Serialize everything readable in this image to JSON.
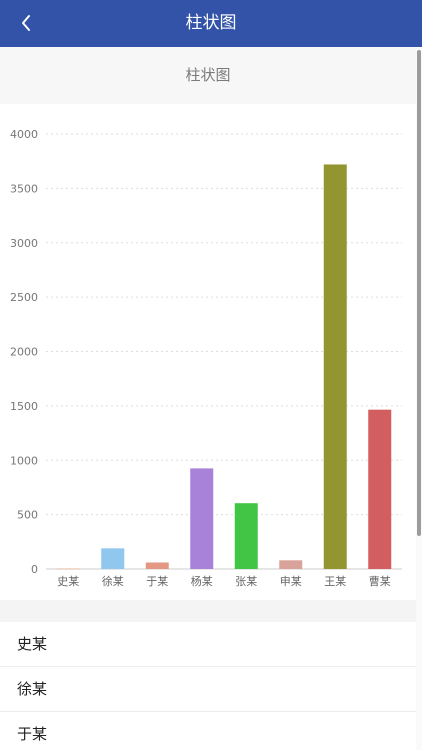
{
  "header": {
    "title": "柱状图",
    "back_icon": "chevron-left-icon"
  },
  "subheader": {
    "title": "柱状图"
  },
  "colors": {
    "header_bg": "#3353a8",
    "bars": [
      "#e8b49a",
      "#8fc7ee",
      "#e49883",
      "#a782d8",
      "#42c444",
      "#d9a29a",
      "#939530",
      "#d25e5f"
    ]
  },
  "chart_data": {
    "type": "bar",
    "categories": [
      "史某",
      "徐某",
      "于某",
      "杨某",
      "张某",
      "申某",
      "王某",
      "曹某"
    ],
    "values": [
      5,
      190,
      60,
      925,
      605,
      80,
      3720,
      1465
    ],
    "title": "",
    "xlabel": "",
    "ylabel": "",
    "ylim": [
      0,
      4000
    ],
    "yticks": [
      0,
      500,
      1000,
      1500,
      2000,
      2500,
      3000,
      3500,
      4000
    ],
    "grid": true
  },
  "list": {
    "items": [
      "史某",
      "徐某",
      "于某"
    ]
  }
}
